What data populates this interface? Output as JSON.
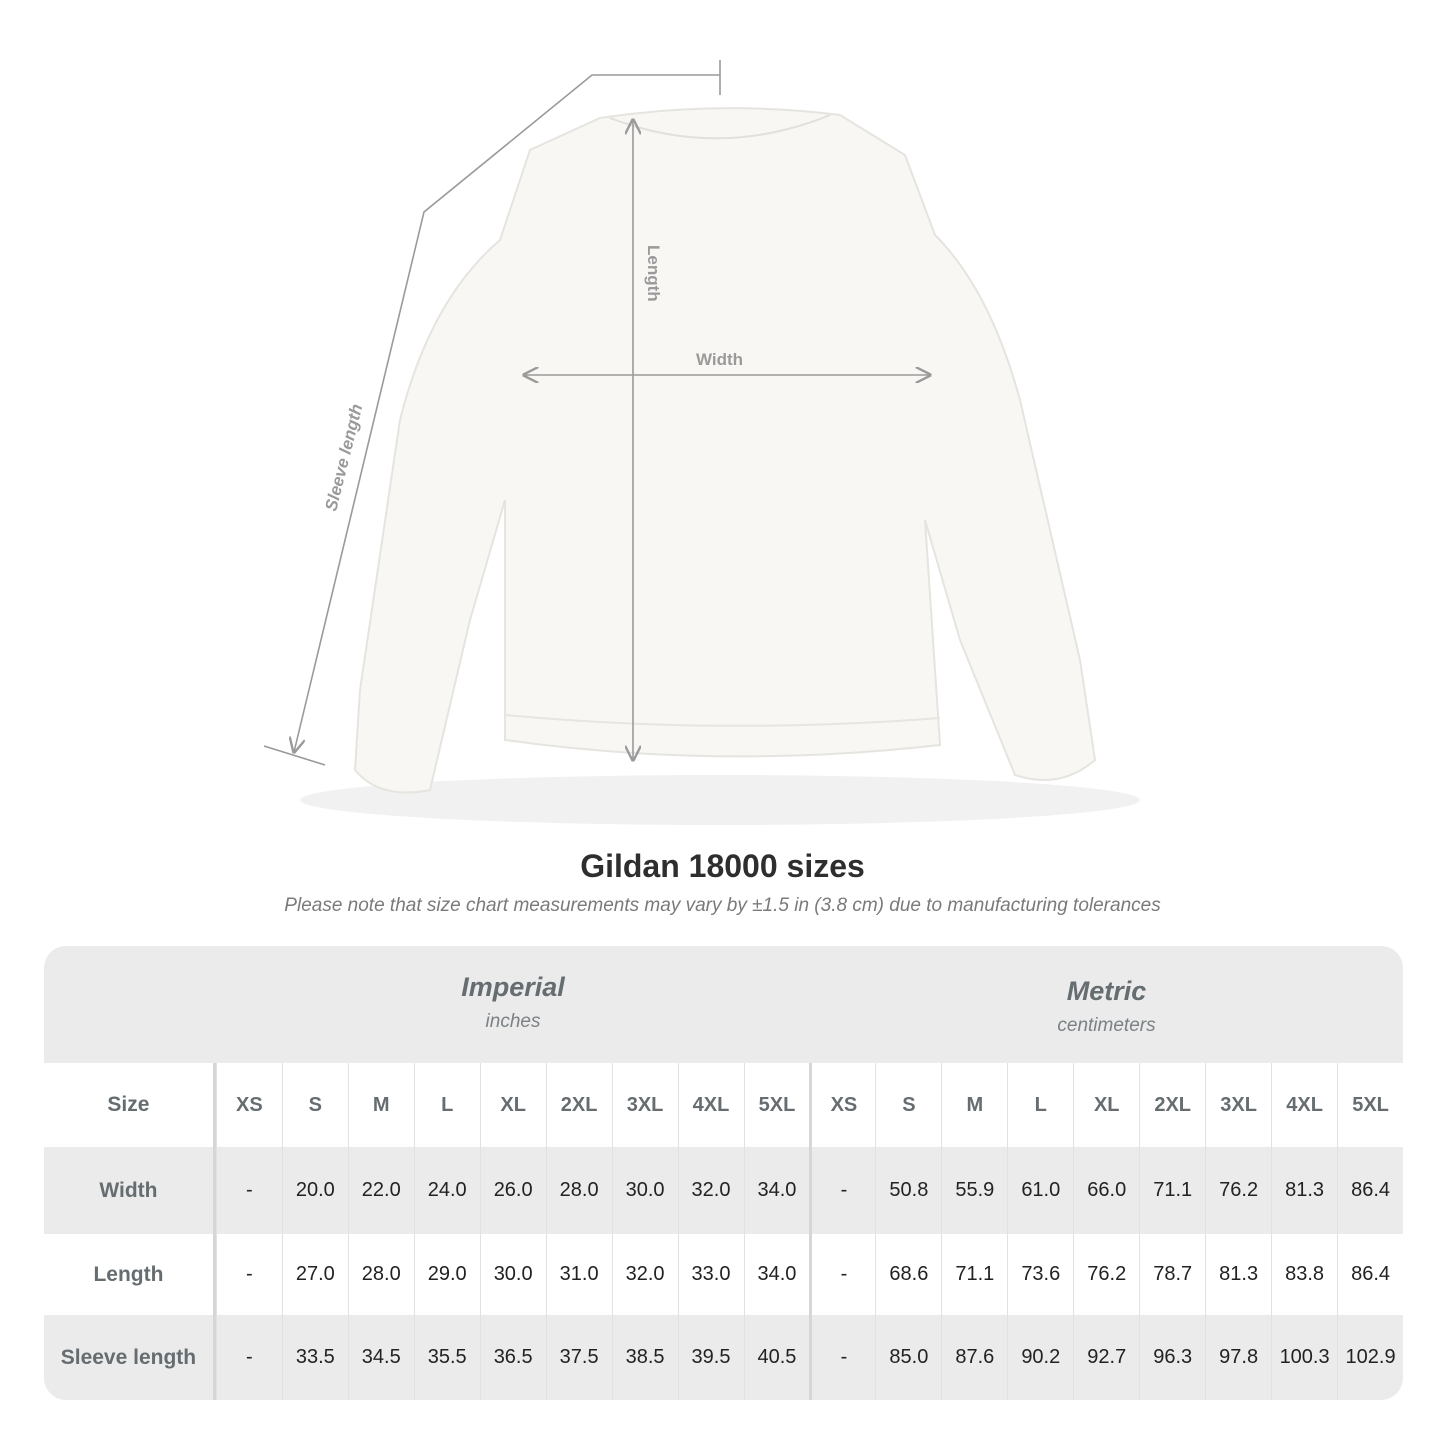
{
  "diagram": {
    "labels": {
      "length": "Length",
      "width": "Width",
      "sleeve": "Sleeve length"
    },
    "line_color": "#9a9a9a",
    "garment_color": "#f8f7f4"
  },
  "title": "Gildan 18000 sizes",
  "subtitle": "Please note that size chart measurements may vary by ±1.5 in (3.8 cm) due to manufacturing tolerances",
  "table": {
    "imperial": {
      "name": "Imperial",
      "unit": "inches"
    },
    "metric": {
      "name": "Metric",
      "unit": "centimeters"
    },
    "size_label": "Size",
    "sizes": [
      "XS",
      "S",
      "M",
      "L",
      "XL",
      "2XL",
      "3XL",
      "4XL",
      "5XL"
    ],
    "rows": [
      {
        "label": "Width",
        "imperial": [
          "-",
          "20.0",
          "22.0",
          "24.0",
          "26.0",
          "28.0",
          "30.0",
          "32.0",
          "34.0"
        ],
        "metric": [
          "-",
          "50.8",
          "55.9",
          "61.0",
          "66.0",
          "71.1",
          "76.2",
          "81.3",
          "86.4"
        ]
      },
      {
        "label": "Length",
        "imperial": [
          "-",
          "27.0",
          "28.0",
          "29.0",
          "30.0",
          "31.0",
          "32.0",
          "33.0",
          "34.0"
        ],
        "metric": [
          "-",
          "68.6",
          "71.1",
          "73.6",
          "76.2",
          "78.7",
          "81.3",
          "83.8",
          "86.4"
        ]
      },
      {
        "label": "Sleeve length",
        "imperial": [
          "-",
          "33.5",
          "34.5",
          "35.5",
          "36.5",
          "37.5",
          "38.5",
          "39.5",
          "40.5"
        ],
        "metric": [
          "-",
          "85.0",
          "87.6",
          "90.2",
          "92.7",
          "96.3",
          "97.8",
          "100.3",
          "102.9"
        ]
      }
    ]
  }
}
